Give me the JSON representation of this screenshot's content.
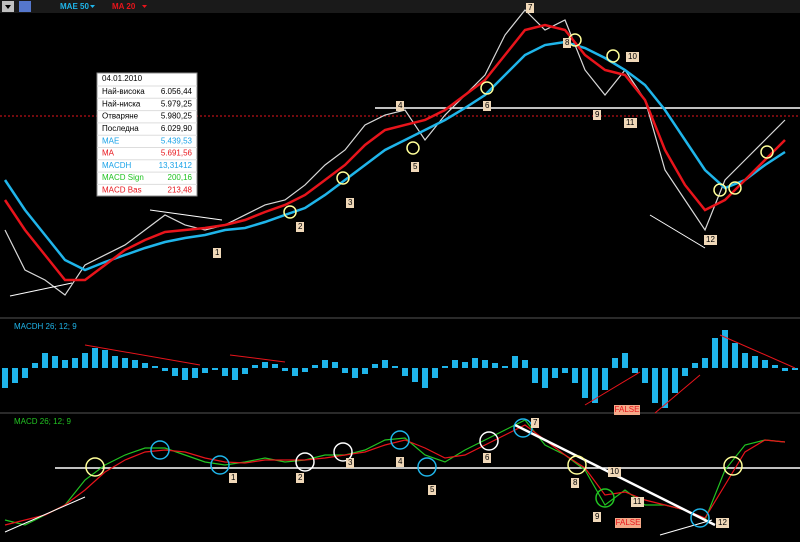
{
  "toolbar": {
    "legend": [
      "MAE 50",
      "MA 20"
    ]
  },
  "info_box": {
    "date": "04.01.2010",
    "rows": [
      {
        "label": "Най-висока",
        "value": "6.056,44",
        "color": "#000000"
      },
      {
        "label": "Най-ниска",
        "value": "5.979,25",
        "color": "#000000"
      },
      {
        "label": "Отваряне",
        "value": "5.980,25",
        "color": "#000000"
      },
      {
        "label": "Последна",
        "value": "6.029,90",
        "color": "#000000"
      },
      {
        "label": "MAE",
        "value": "5.439,53",
        "color": "#1aa3e8"
      },
      {
        "label": "MA",
        "value": "5.691,56",
        "color": "#e8141b"
      },
      {
        "label": "MACDH",
        "value": "13,31412",
        "color": "#1aa3e8"
      },
      {
        "label": "MACD Sign",
        "value": "200,16",
        "color": "#22c322"
      },
      {
        "label": "MACD Bas",
        "value": "213,48",
        "color": "#e8141b"
      }
    ]
  },
  "chart_data": [
    {
      "type": "line",
      "ylim": [
        2441,
        8176
      ],
      "reference_lines": [
        6030,
        6178
      ],
      "annotations": [
        "1",
        "2",
        "3",
        "4",
        "5",
        "6",
        "7",
        "8",
        "9",
        "10",
        "11",
        "12"
      ],
      "series": [
        {
          "color": "#d8d8d8",
          "values": [
            3921,
            3181,
            2996,
            2718,
            3274,
            3459,
            3644,
            3921,
            4199,
            4014,
            3921,
            4014,
            4199,
            4384,
            4476,
            4754,
            5124,
            5401,
            5864,
            6048,
            6141,
            5586,
            6048,
            6418,
            6788,
            7528,
            7991,
            7621,
            7806,
            6881,
            6418,
            6881,
            6326,
            5031,
            4476,
            3921,
            4846,
            5216,
            5586,
            5956
          ]
        },
        {
          "name": "MAE 50",
          "color": "#1fb5ea",
          "values": [
            4846,
            4291,
            3829,
            3366,
            3181,
            3329,
            3459,
            3588,
            3699,
            3773,
            3829,
            3921,
            3958,
            4069,
            4199,
            4328,
            4569,
            4846,
            5124,
            5401,
            5586,
            5771,
            5956,
            6178,
            6418,
            6788,
            7158,
            7343,
            7399,
            7288,
            7103,
            6881,
            6604,
            6141,
            5586,
            5031,
            4698,
            4846,
            5124,
            5364
          ]
        },
        {
          "name": "MA 20",
          "color": "#e8141b",
          "values": [
            4476,
            3921,
            3459,
            2996,
            2996,
            3274,
            3551,
            3736,
            3884,
            3921,
            3958,
            4014,
            4106,
            4254,
            4384,
            4569,
            4846,
            5124,
            5494,
            5771,
            5864,
            5956,
            6141,
            6418,
            6696,
            7158,
            7621,
            7713,
            7621,
            7158,
            6881,
            6788,
            6326,
            5401,
            4754,
            4291,
            4476,
            4846,
            5216,
            5586
          ]
        }
      ]
    },
    {
      "type": "bar",
      "title": "MACDH 26; 12; 9",
      "ylim": [
        -185,
        215
      ],
      "color": "#1fb5ea",
      "annotations": [
        "FALSE"
      ],
      "values": [
        -100,
        -75,
        -50,
        25,
        75,
        60,
        40,
        50,
        75,
        100,
        90,
        60,
        50,
        40,
        25,
        10,
        -15,
        -40,
        -60,
        -50,
        -25,
        -10,
        -40,
        -60,
        -30,
        15,
        30,
        20,
        -15,
        -40,
        -20,
        15,
        40,
        30,
        -25,
        -50,
        -30,
        20,
        40,
        10,
        -40,
        -70,
        -100,
        -50,
        10,
        40,
        30,
        50,
        40,
        25,
        10,
        60,
        40,
        -75,
        -100,
        -50,
        -25,
        -75,
        -150,
        -175,
        -110,
        50,
        75,
        -25,
        -75,
        -175,
        -200,
        -125,
        -40,
        25,
        50,
        150,
        190,
        125,
        75,
        60,
        40,
        15,
        -15,
        -10
      ]
    },
    {
      "type": "line",
      "title": "MACD 26; 12; 9",
      "ylim": [
        -648,
        432
      ],
      "reference_lines": [
        0
      ],
      "annotations": [
        "1",
        "2",
        "3",
        "4",
        "5",
        "6",
        "7",
        "8",
        "9",
        "10",
        "11",
        "12",
        "FALSE"
      ],
      "series": [
        {
          "color": "#22c322",
          "values": [
            -468,
            -513,
            -423,
            -333,
            -108,
            27,
            117,
            180,
            180,
            117,
            54,
            27,
            54,
            90,
            54,
            72,
            117,
            117,
            162,
            252,
            270,
            117,
            54,
            162,
            252,
            342,
            432,
            207,
            117,
            -18,
            -333,
            -198,
            -333,
            -333,
            -378,
            -468,
            -18,
            207,
            252,
            234
          ]
        },
        {
          "color": "#e8141b",
          "values": [
            -513,
            -468,
            -423,
            -333,
            -198,
            -36,
            72,
            144,
            162,
            144,
            90,
            54,
            45,
            72,
            72,
            72,
            90,
            117,
            144,
            207,
            252,
            180,
            90,
            117,
            207,
            297,
            387,
            252,
            117,
            0,
            -243,
            -216,
            -288,
            -333,
            -378,
            -450,
            -153,
            144,
            252,
            234
          ]
        }
      ]
    }
  ]
}
